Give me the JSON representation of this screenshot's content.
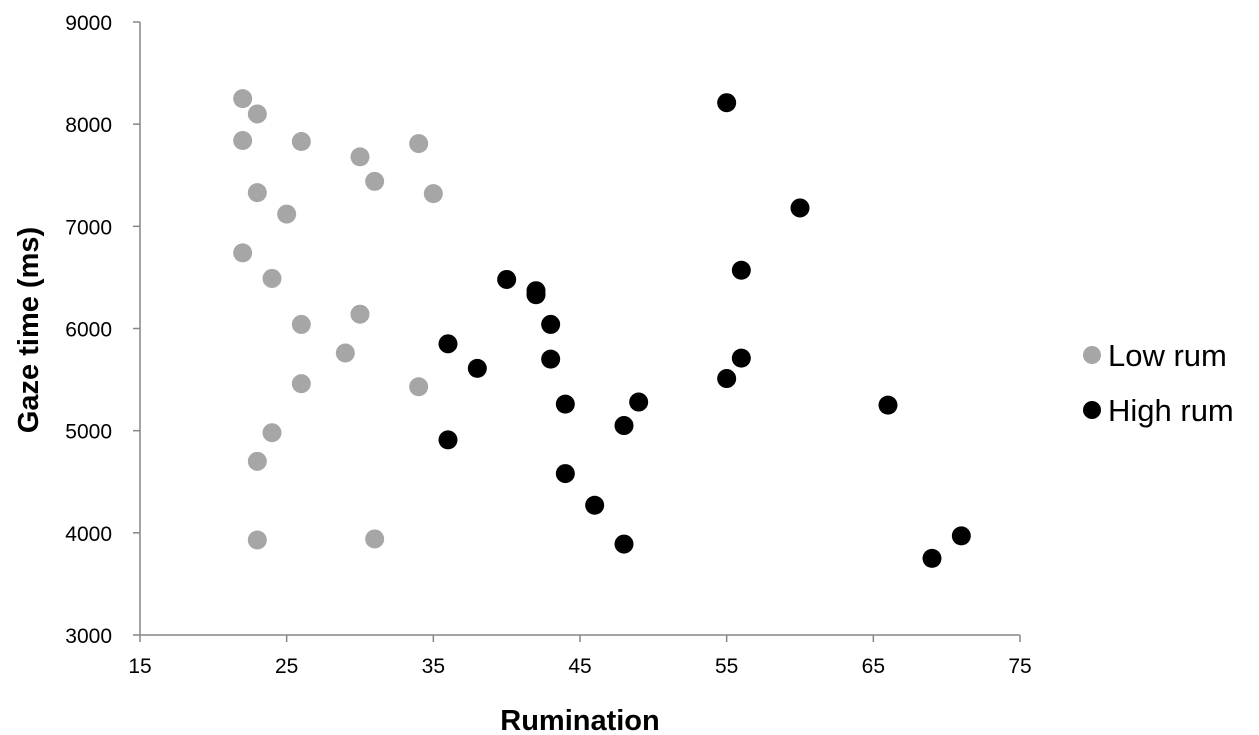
{
  "chart_data": {
    "type": "scatter",
    "title": "",
    "xlabel": "Rumination",
    "ylabel": "Gaze time (ms)",
    "xlim": [
      15,
      75
    ],
    "ylim": [
      3000,
      9000
    ],
    "x_ticks": [
      "15",
      "25",
      "35",
      "45",
      "55",
      "65",
      "75"
    ],
    "y_ticks": [
      "3000",
      "4000",
      "5000",
      "6000",
      "7000",
      "8000",
      "9000"
    ],
    "grid": false,
    "legend_position": "right",
    "series": [
      {
        "name": "Low rum",
        "color": "#a6a6a6",
        "points": [
          [
            22,
            8250
          ],
          [
            23,
            8100
          ],
          [
            22,
            7840
          ],
          [
            26,
            7830
          ],
          [
            30,
            7680
          ],
          [
            34,
            7810
          ],
          [
            31,
            7440
          ],
          [
            23,
            7330
          ],
          [
            35,
            7320
          ],
          [
            25,
            7120
          ],
          [
            22,
            6740
          ],
          [
            24,
            6490
          ],
          [
            26,
            6040
          ],
          [
            30,
            6140
          ],
          [
            29,
            5760
          ],
          [
            26,
            5460
          ],
          [
            34,
            5430
          ],
          [
            24,
            4980
          ],
          [
            23,
            4700
          ],
          [
            23,
            3930
          ],
          [
            31,
            3940
          ]
        ]
      },
      {
        "name": "High rum",
        "color": "#000000",
        "points": [
          [
            55,
            8210
          ],
          [
            60,
            7180
          ],
          [
            56,
            6570
          ],
          [
            40,
            6480
          ],
          [
            42,
            6370
          ],
          [
            42,
            6330
          ],
          [
            43,
            6040
          ],
          [
            36,
            5850
          ],
          [
            43,
            5700
          ],
          [
            56,
            5710
          ],
          [
            38,
            5610
          ],
          [
            55,
            5510
          ],
          [
            44,
            5260
          ],
          [
            49,
            5280
          ],
          [
            66,
            5250
          ],
          [
            48,
            5050
          ],
          [
            36,
            4910
          ],
          [
            44,
            4580
          ],
          [
            46,
            4270
          ],
          [
            48,
            3890
          ],
          [
            71,
            3970
          ],
          [
            69,
            3750
          ]
        ]
      }
    ]
  }
}
